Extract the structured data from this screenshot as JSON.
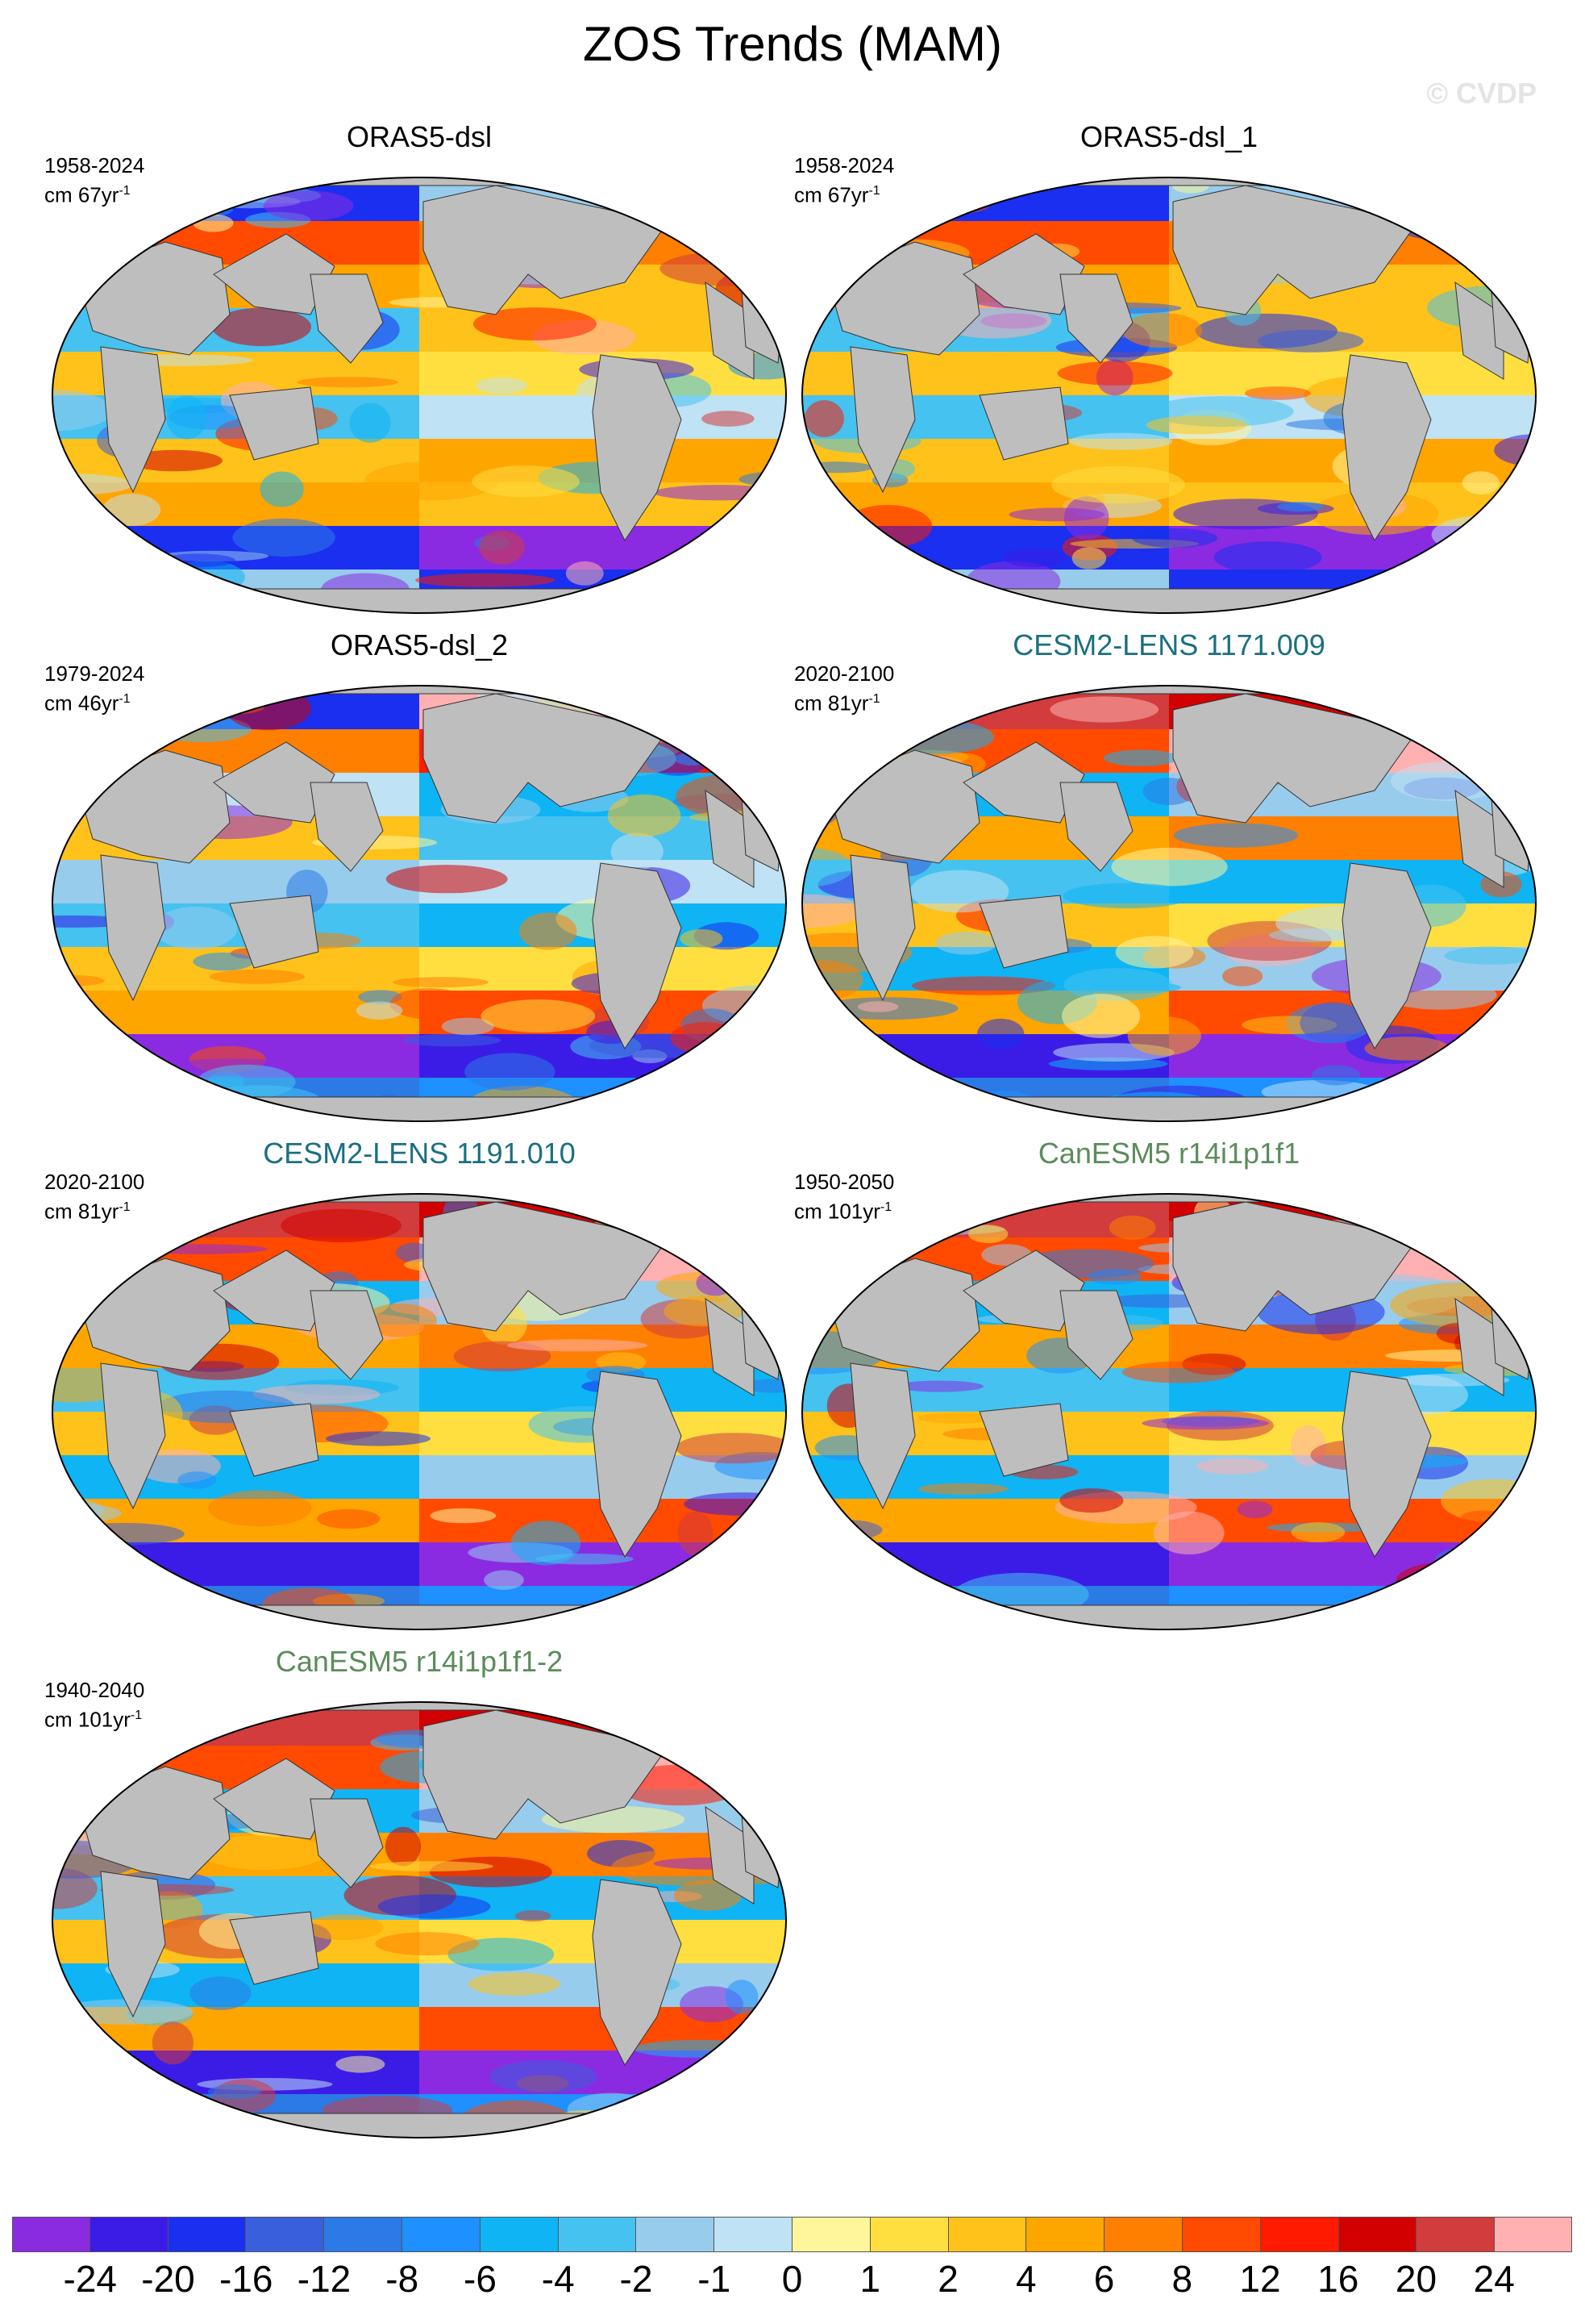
{
  "title": "ZOS Trends (MAM)",
  "watermark": "© CVDP",
  "panels": [
    {
      "name": "ORAS5-dsl",
      "period": "1958-2024",
      "units": "cm 67yr",
      "exponent": "-1",
      "title_color": "black"
    },
    {
      "name": "ORAS5-dsl_1",
      "period": "1958-2024",
      "units": "cm 67yr",
      "exponent": "-1",
      "title_color": "black"
    },
    {
      "name": "ORAS5-dsl_2",
      "period": "1979-2024",
      "units": "cm 46yr",
      "exponent": "-1",
      "title_color": "black"
    },
    {
      "name": "CESM2-LENS 1171.009",
      "period": "2020-2100",
      "units": "cm 81yr",
      "exponent": "-1",
      "title_color": "teal"
    },
    {
      "name": "CESM2-LENS 1191.010",
      "period": "2020-2100",
      "units": "cm 81yr",
      "exponent": "-1",
      "title_color": "teal"
    },
    {
      "name": "CanESM5 r14i1p1f1",
      "period": "1950-2050",
      "units": "cm 101yr",
      "exponent": "-1",
      "title_color": "green"
    },
    {
      "name": "CanESM5 r14i1p1f1-2",
      "period": "1940-2040",
      "units": "cm 101yr",
      "exponent": "-1",
      "title_color": "green"
    }
  ],
  "colorbar": {
    "labels": [
      "-24",
      "-20",
      "-16",
      "-12",
      "-8",
      "-6",
      "-4",
      "-2",
      "-1",
      "0",
      "1",
      "2",
      "4",
      "6",
      "8",
      "12",
      "16",
      "20",
      "24"
    ],
    "colors": [
      "#8a2be2",
      "#3b1ce6",
      "#1a2ff0",
      "#3a5fdc",
      "#2b7ae6",
      "#1e90ff",
      "#0fb4f4",
      "#45c2f0",
      "#98ccec",
      "#bfe2f4",
      "#fff59a",
      "#ffdf40",
      "#ffc21a",
      "#ffa500",
      "#ff7f00",
      "#ff4a00",
      "#ff1a00",
      "#d20000",
      "#d23c3c",
      "#ffb0b0"
    ],
    "land_color": "#bebebe"
  }
}
